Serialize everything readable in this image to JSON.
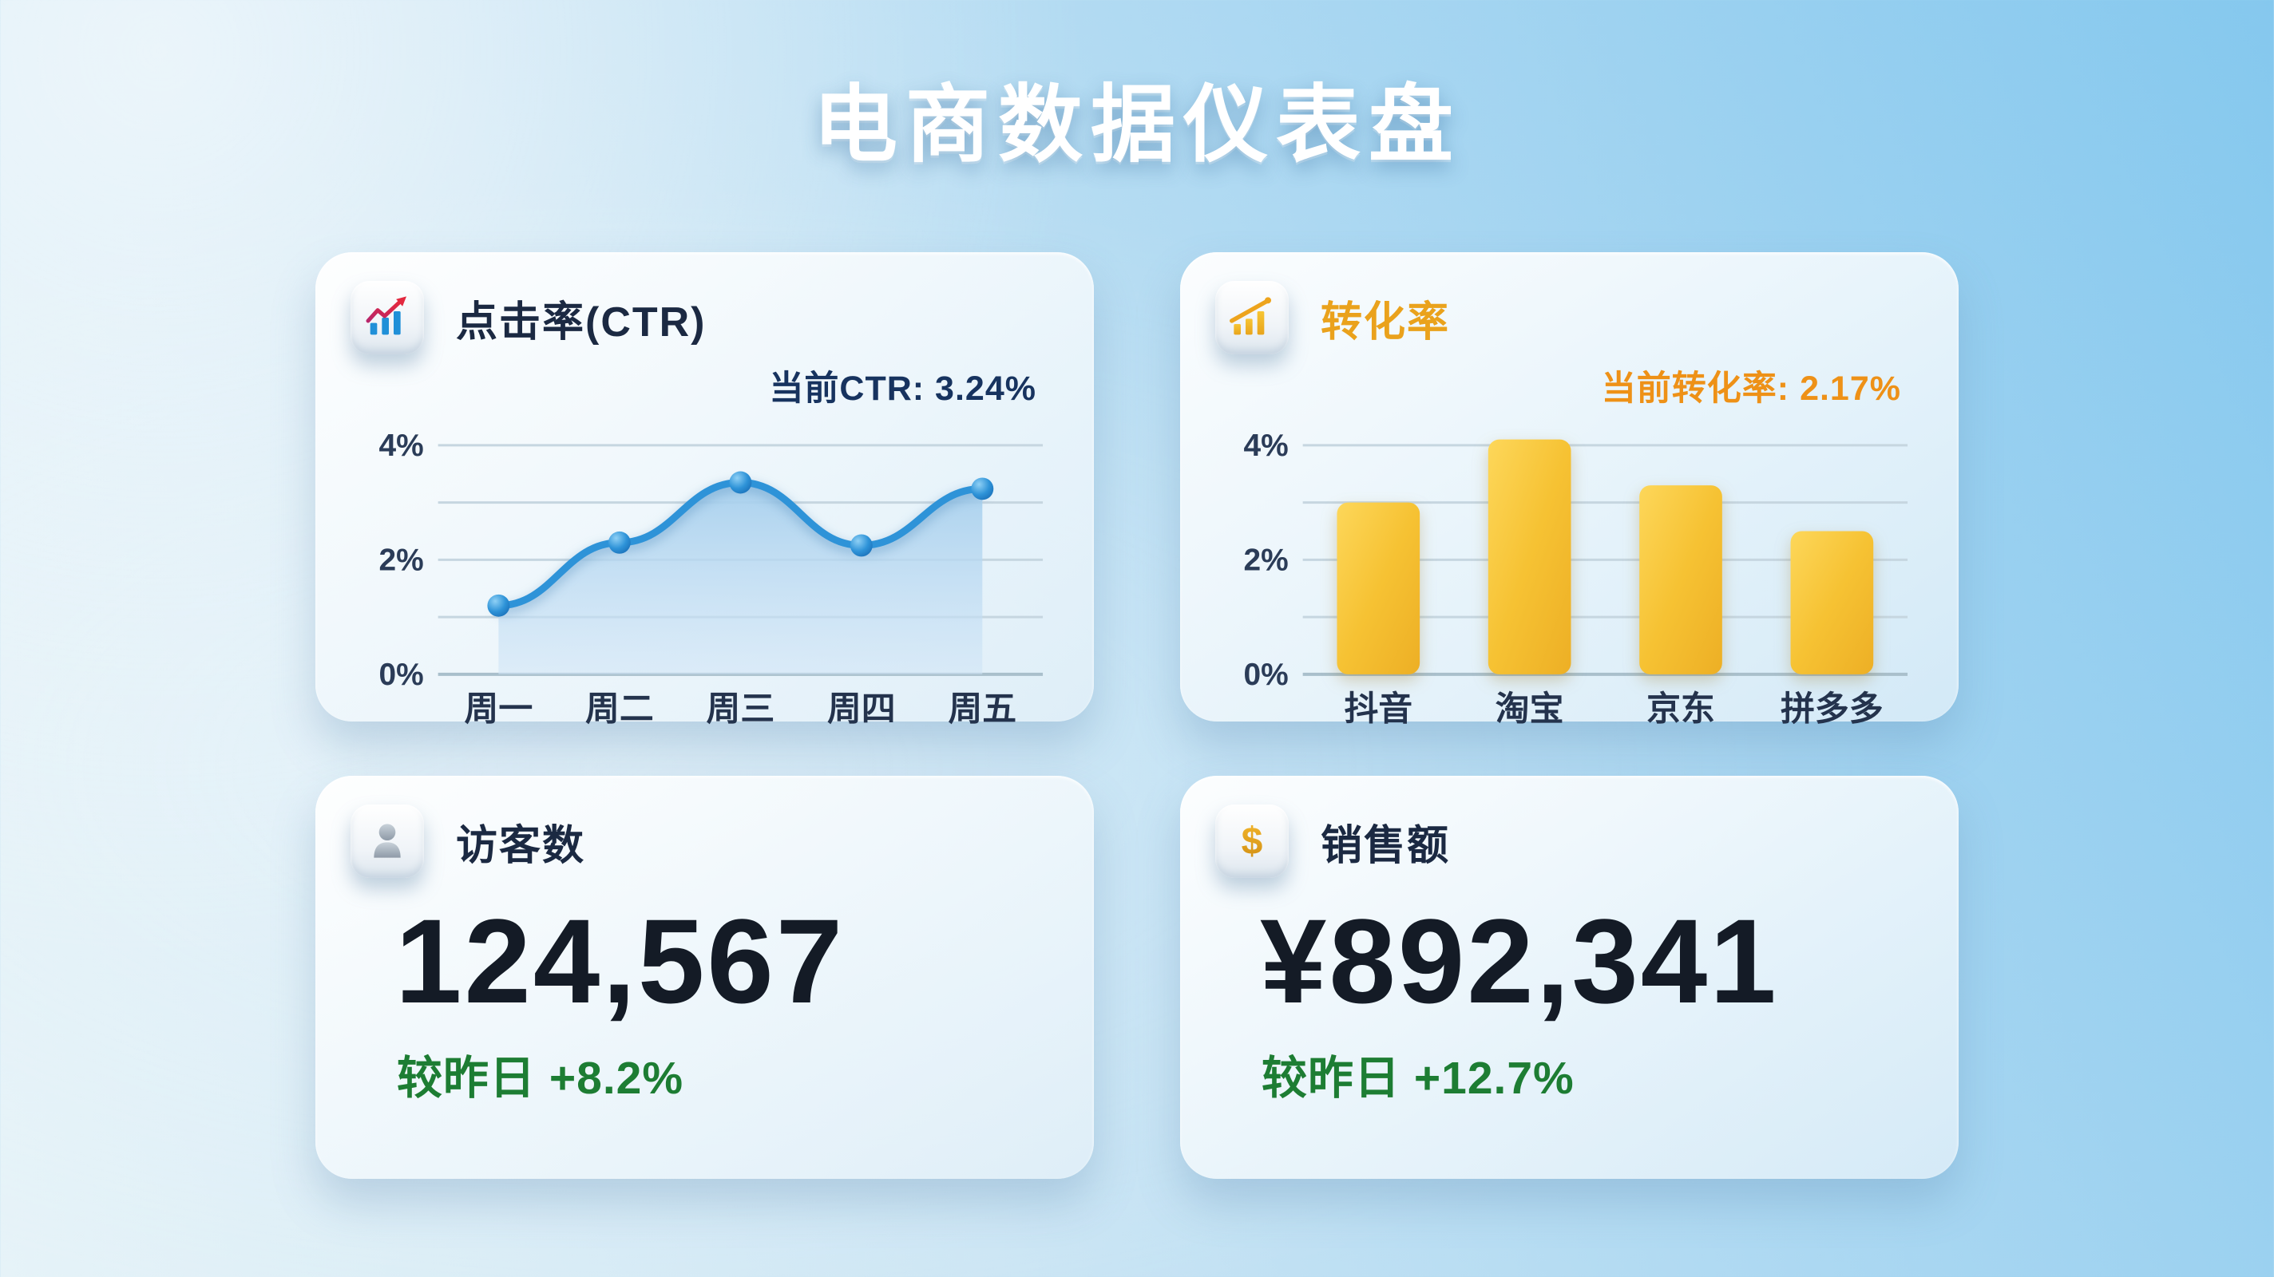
{
  "page": {
    "title": "电商数据仪表盘"
  },
  "colors": {
    "background_blue": "#85c8ee",
    "background_light": "#e6f3f8",
    "navy_text": "#1b2942",
    "ctr_blue": "#2e93d8",
    "area_fill": "#b7d8f1",
    "conversion_title": "#eaa21c",
    "conversion_label": "#ee9117",
    "bar_gold": "#f5c235",
    "delta_green": "#1d7d33",
    "kpi_number": "#141b26"
  },
  "cards": {
    "ctr": {
      "icon": "bar-chart-trend-up-icon",
      "title": "点击率(CTR)",
      "current_label": "当前CTR: 3.24%",
      "chart_data": {
        "type": "line",
        "title": "点击率(CTR)",
        "categories": [
          "周一",
          "周二",
          "周三",
          "周四",
          "周五"
        ],
        "values": [
          1.2,
          2.3,
          3.35,
          2.25,
          3.24
        ],
        "xlabel": "",
        "ylabel": "",
        "ylim": [
          0,
          4
        ],
        "grid_step": 1,
        "grid": true,
        "legend": "none",
        "yticks": [
          {
            "value": 4,
            "label": "4%"
          },
          {
            "value": 2,
            "label": "2%"
          },
          {
            "value": 0,
            "label": "0%"
          }
        ],
        "line_color": "#2e93d8",
        "area_fill": "#b7d8f1"
      }
    },
    "conversion": {
      "icon": "bar-chart-rising-icon",
      "title": "转化率",
      "current_label": "当前转化率: 2.17%",
      "chart_data": {
        "type": "bar",
        "title": "转化率",
        "categories": [
          "抖音",
          "淘宝",
          "京东",
          "拼多多"
        ],
        "values": [
          3.0,
          4.1,
          3.3,
          2.5
        ],
        "xlabel": "",
        "ylabel": "",
        "ylim": [
          0,
          4
        ],
        "grid_step": 1,
        "grid": true,
        "legend": "none",
        "yticks": [
          {
            "value": 4,
            "label": "4%"
          },
          {
            "value": 2,
            "label": "2%"
          },
          {
            "value": 0,
            "label": "0%"
          }
        ],
        "bar_color": "#f5c235"
      }
    },
    "visitors": {
      "icon": "person-icon",
      "title": "访客数",
      "value": "124,567",
      "delta_label": "较昨日 +8.2%"
    },
    "sales": {
      "icon": "dollar-icon",
      "title": "销售额",
      "value": "¥892,341",
      "delta_label": "较昨日 +12.7%"
    }
  }
}
